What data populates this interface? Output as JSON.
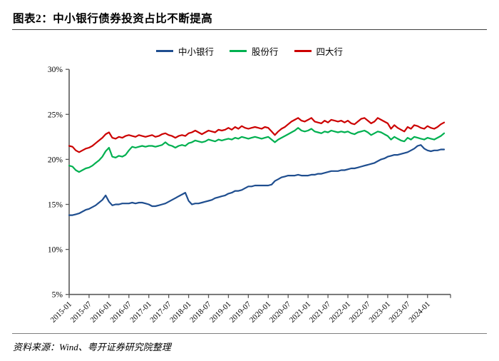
{
  "header": {
    "title": "图表2：中小银行债券投资占比不断提高"
  },
  "footer": {
    "source": "资料来源：Wind、粤开证券研究院整理"
  },
  "colors": {
    "axis": "#595959",
    "blue": "#1f4e8f",
    "green": "#00b050",
    "red": "#cc0000"
  },
  "chart_data": {
    "type": "line",
    "title": "中小银行债券投资占比不断提高",
    "x_frequency": "monthly",
    "x_start": "2015-01",
    "x_end": "2024-06",
    "grid": false,
    "legend_position": "top-center",
    "ylim": [
      5,
      30
    ],
    "y_tick_labels": [
      "5%",
      "10%",
      "15%",
      "20%",
      "25%",
      "30%"
    ],
    "y_tick_values": [
      5,
      10,
      15,
      20,
      25,
      30
    ],
    "x_tick_labels": [
      "2015-01",
      "2015-07",
      "2016-01",
      "2016-07",
      "2017-01",
      "2017-07",
      "2018-01",
      "2018-07",
      "2019-01",
      "2019-07",
      "2020-01",
      "2020-07",
      "2021-01",
      "2021-07",
      "2022-01",
      "2022-07",
      "2023-01",
      "2023-07",
      "2024-01"
    ],
    "x_tick_month_index": [
      0,
      6,
      12,
      18,
      24,
      30,
      36,
      42,
      48,
      54,
      60,
      66,
      72,
      78,
      84,
      90,
      96,
      102,
      108
    ],
    "series": [
      {
        "name": "中小银行",
        "color": "#1f4e8f",
        "values": [
          13.8,
          13.8,
          13.9,
          14.0,
          14.2,
          14.4,
          14.5,
          14.7,
          14.9,
          15.2,
          15.5,
          16.0,
          15.3,
          14.9,
          15.0,
          15.0,
          15.1,
          15.1,
          15.1,
          15.2,
          15.1,
          15.2,
          15.2,
          15.1,
          15.0,
          14.8,
          14.8,
          14.9,
          15.0,
          15.1,
          15.3,
          15.5,
          15.7,
          15.9,
          16.1,
          16.3,
          15.4,
          15.0,
          15.1,
          15.1,
          15.2,
          15.3,
          15.4,
          15.5,
          15.7,
          15.8,
          15.9,
          16.0,
          16.2,
          16.3,
          16.5,
          16.5,
          16.6,
          16.8,
          17.0,
          17.0,
          17.1,
          17.1,
          17.1,
          17.1,
          17.1,
          17.2,
          17.6,
          17.8,
          18.0,
          18.1,
          18.2,
          18.2,
          18.2,
          18.3,
          18.2,
          18.2,
          18.2,
          18.3,
          18.3,
          18.4,
          18.4,
          18.5,
          18.6,
          18.7,
          18.7,
          18.7,
          18.8,
          18.8,
          18.9,
          19.0,
          19.0,
          19.1,
          19.2,
          19.3,
          19.4,
          19.5,
          19.6,
          19.8,
          20.0,
          20.1,
          20.3,
          20.4,
          20.5,
          20.5,
          20.6,
          20.7,
          20.8,
          21.0,
          21.2,
          21.5,
          21.6,
          21.2,
          21.0,
          20.9,
          21.0,
          21.0,
          21.1,
          21.1
        ]
      },
      {
        "name": "股份行",
        "color": "#00b050",
        "values": [
          19.3,
          19.2,
          18.8,
          18.6,
          18.8,
          19.0,
          19.1,
          19.3,
          19.6,
          19.9,
          20.3,
          20.9,
          21.3,
          20.3,
          20.2,
          20.4,
          20.3,
          20.5,
          21.0,
          21.4,
          21.3,
          21.4,
          21.5,
          21.4,
          21.5,
          21.5,
          21.4,
          21.5,
          21.6,
          21.9,
          21.6,
          21.5,
          21.3,
          21.5,
          21.6,
          21.5,
          21.8,
          21.9,
          22.1,
          22.0,
          21.9,
          22.0,
          22.2,
          22.1,
          22.0,
          22.2,
          22.1,
          22.2,
          22.3,
          22.2,
          22.4,
          22.3,
          22.5,
          22.4,
          22.3,
          22.4,
          22.5,
          22.4,
          22.3,
          22.4,
          22.5,
          22.2,
          21.9,
          22.2,
          22.4,
          22.6,
          22.8,
          23.0,
          23.2,
          23.5,
          23.2,
          23.1,
          23.2,
          23.4,
          23.1,
          23.0,
          22.9,
          23.1,
          23.0,
          23.2,
          23.1,
          23.0,
          23.1,
          23.0,
          23.1,
          22.9,
          22.8,
          23.0,
          23.1,
          23.2,
          23.0,
          22.7,
          22.9,
          23.1,
          23.0,
          22.8,
          22.6,
          22.2,
          22.5,
          22.3,
          22.1,
          22.0,
          22.4,
          22.2,
          22.5,
          22.4,
          22.3,
          22.2,
          22.4,
          22.3,
          22.2,
          22.4,
          22.6,
          22.9
        ]
      },
      {
        "name": "四大行",
        "color": "#cc0000",
        "values": [
          21.5,
          21.4,
          21.0,
          20.8,
          21.0,
          21.2,
          21.3,
          21.5,
          21.8,
          22.1,
          22.4,
          22.8,
          23.0,
          22.4,
          22.3,
          22.5,
          22.4,
          22.6,
          22.7,
          22.6,
          22.5,
          22.7,
          22.6,
          22.5,
          22.6,
          22.7,
          22.5,
          22.6,
          22.8,
          22.9,
          22.7,
          22.6,
          22.4,
          22.6,
          22.7,
          22.6,
          22.9,
          23.0,
          23.2,
          23.0,
          22.8,
          23.0,
          23.2,
          23.1,
          23.0,
          23.3,
          23.2,
          23.3,
          23.5,
          23.3,
          23.6,
          23.4,
          23.7,
          23.5,
          23.4,
          23.5,
          23.6,
          23.5,
          23.4,
          23.6,
          23.5,
          23.1,
          22.7,
          23.1,
          23.4,
          23.6,
          23.9,
          24.2,
          24.4,
          24.6,
          24.3,
          24.2,
          24.4,
          24.6,
          24.2,
          24.1,
          24.0,
          24.3,
          24.1,
          24.4,
          24.3,
          24.2,
          24.3,
          24.1,
          24.3,
          24.0,
          23.9,
          24.2,
          24.5,
          24.6,
          24.3,
          24.0,
          24.2,
          24.6,
          24.4,
          24.2,
          24.0,
          23.4,
          23.8,
          23.5,
          23.3,
          23.1,
          23.6,
          23.4,
          23.8,
          23.7,
          23.5,
          23.4,
          23.7,
          23.5,
          23.4,
          23.6,
          23.9,
          24.1
        ]
      }
    ]
  }
}
